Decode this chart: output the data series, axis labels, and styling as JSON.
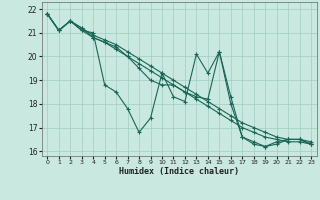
{
  "xlabel": "Humidex (Indice chaleur)",
  "bg_color": "#c8e8e0",
  "grid_color": "#a0ccc0",
  "line_color": "#1a6655",
  "xlim": [
    -0.5,
    23.5
  ],
  "ylim": [
    15.8,
    22.3
  ],
  "yticks": [
    16,
    17,
    18,
    19,
    20,
    21,
    22
  ],
  "xticks": [
    0,
    1,
    2,
    3,
    4,
    5,
    6,
    7,
    8,
    9,
    10,
    11,
    12,
    13,
    14,
    15,
    16,
    17,
    18,
    19,
    20,
    21,
    22,
    23
  ],
  "lines": [
    {
      "x": [
        0,
        1,
        2,
        3,
        4,
        5,
        6,
        7,
        8,
        9,
        10,
        11,
        12,
        13,
        14,
        15,
        16,
        17,
        18,
        19,
        20,
        21,
        22,
        23
      ],
      "y": [
        21.8,
        21.1,
        21.5,
        21.1,
        21.0,
        18.8,
        18.5,
        17.8,
        16.8,
        17.4,
        19.3,
        18.3,
        18.1,
        20.1,
        19.3,
        20.2,
        18.3,
        16.6,
        16.3,
        16.2,
        16.3,
        16.5,
        16.5,
        16.3
      ]
    },
    {
      "x": [
        0,
        1,
        2,
        3,
        4,
        5,
        6,
        7,
        8,
        9,
        10,
        11,
        12,
        13,
        14,
        15,
        16,
        17,
        18,
        19,
        20,
        21,
        22,
        23
      ],
      "y": [
        21.8,
        21.1,
        21.5,
        21.2,
        20.8,
        20.6,
        20.3,
        20.0,
        19.7,
        19.4,
        19.1,
        18.8,
        18.5,
        18.2,
        17.9,
        17.6,
        17.3,
        17.0,
        16.8,
        16.6,
        16.5,
        16.4,
        16.4,
        16.3
      ]
    },
    {
      "x": [
        0,
        1,
        2,
        3,
        4,
        5,
        6,
        7,
        8,
        9,
        10,
        11,
        12,
        13,
        14,
        15,
        16,
        17,
        18,
        19,
        20,
        21,
        22,
        23
      ],
      "y": [
        21.8,
        21.1,
        21.5,
        21.2,
        20.9,
        20.7,
        20.5,
        20.2,
        19.9,
        19.6,
        19.3,
        19.0,
        18.7,
        18.4,
        18.1,
        17.8,
        17.5,
        17.2,
        17.0,
        16.8,
        16.6,
        16.5,
        16.5,
        16.4
      ]
    },
    {
      "x": [
        0,
        1,
        2,
        3,
        4,
        5,
        6,
        7,
        8,
        9,
        10,
        11,
        12,
        13,
        14,
        15,
        16,
        17,
        18,
        19,
        20,
        21,
        22,
        23
      ],
      "y": [
        21.8,
        21.1,
        21.5,
        21.1,
        20.8,
        20.6,
        20.4,
        20.0,
        19.5,
        19.0,
        18.8,
        18.8,
        18.5,
        18.3,
        18.2,
        20.2,
        18.0,
        16.6,
        16.4,
        16.2,
        16.4,
        16.5,
        16.5,
        16.3
      ]
    }
  ]
}
